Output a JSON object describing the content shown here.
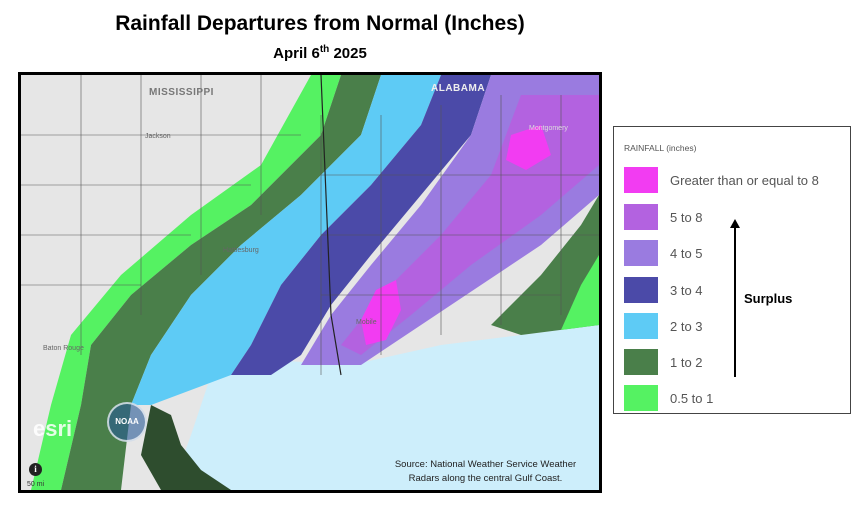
{
  "title": "Rainfall Departures from Normal (Inches)",
  "subtitle_main": "April 6",
  "subtitle_sup": "th",
  "subtitle_year": " 2025",
  "map": {
    "labels": {
      "mississippi": "MISSISSIPPI",
      "alabama": "ALABAMA"
    },
    "cities": {
      "jackson": "Jackson",
      "hattiesburg": "Hattiesburg",
      "mobile": "Mobile",
      "montgomery": "Montgomery",
      "baton_rouge": "Baton Rouge"
    },
    "source_line1": "Source: National Weather Service Weather",
    "source_line2": "Radars along the central Gulf Coast.",
    "logo_esri": "esri",
    "logo_noaa": "NOAA",
    "info_icon": "i",
    "scale_text": "50 mi"
  },
  "legend": {
    "title": "RAINFALL (inches)",
    "items": [
      {
        "label": "Greater than or equal to 8",
        "color": "#f23cf2"
      },
      {
        "label": "5 to 8",
        "color": "#b362e0"
      },
      {
        "label": "4 to 5",
        "color": "#9a7be0"
      },
      {
        "label": "3 to 4",
        "color": "#4b4aa8"
      },
      {
        "label": "2 to 3",
        "color": "#5ecbf5"
      },
      {
        "label": "1 to 2",
        "color": "#4a7f4a"
      },
      {
        "label": "0.5 to 1",
        "color": "#55f262"
      }
    ],
    "arrow_label": "Surplus"
  }
}
